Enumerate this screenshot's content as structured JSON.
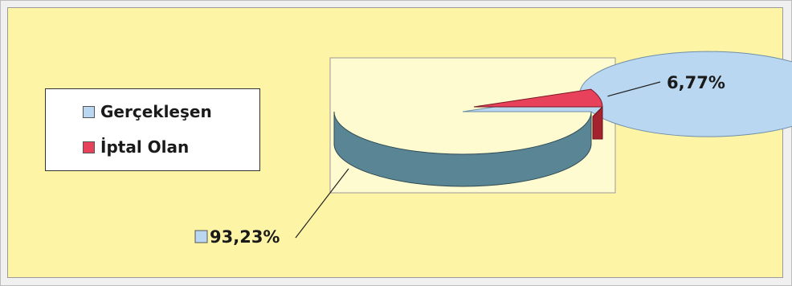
{
  "colors": {
    "panel_background": "#fdf4a6",
    "plot_area_background": "#fffbd0",
    "series_colors": [
      "#b9d7f0",
      "#e8415b"
    ],
    "series_side_colors": [
      "#5a8594",
      "#a4232e"
    ]
  },
  "chart_data": {
    "type": "pie",
    "style": "3d",
    "legend_position": "left",
    "categories": [
      "Gerçekleşen",
      "İptal Olan"
    ],
    "values": [
      93.23,
      6.77
    ],
    "data_labels": [
      "93,23%",
      "6,77%"
    ]
  }
}
